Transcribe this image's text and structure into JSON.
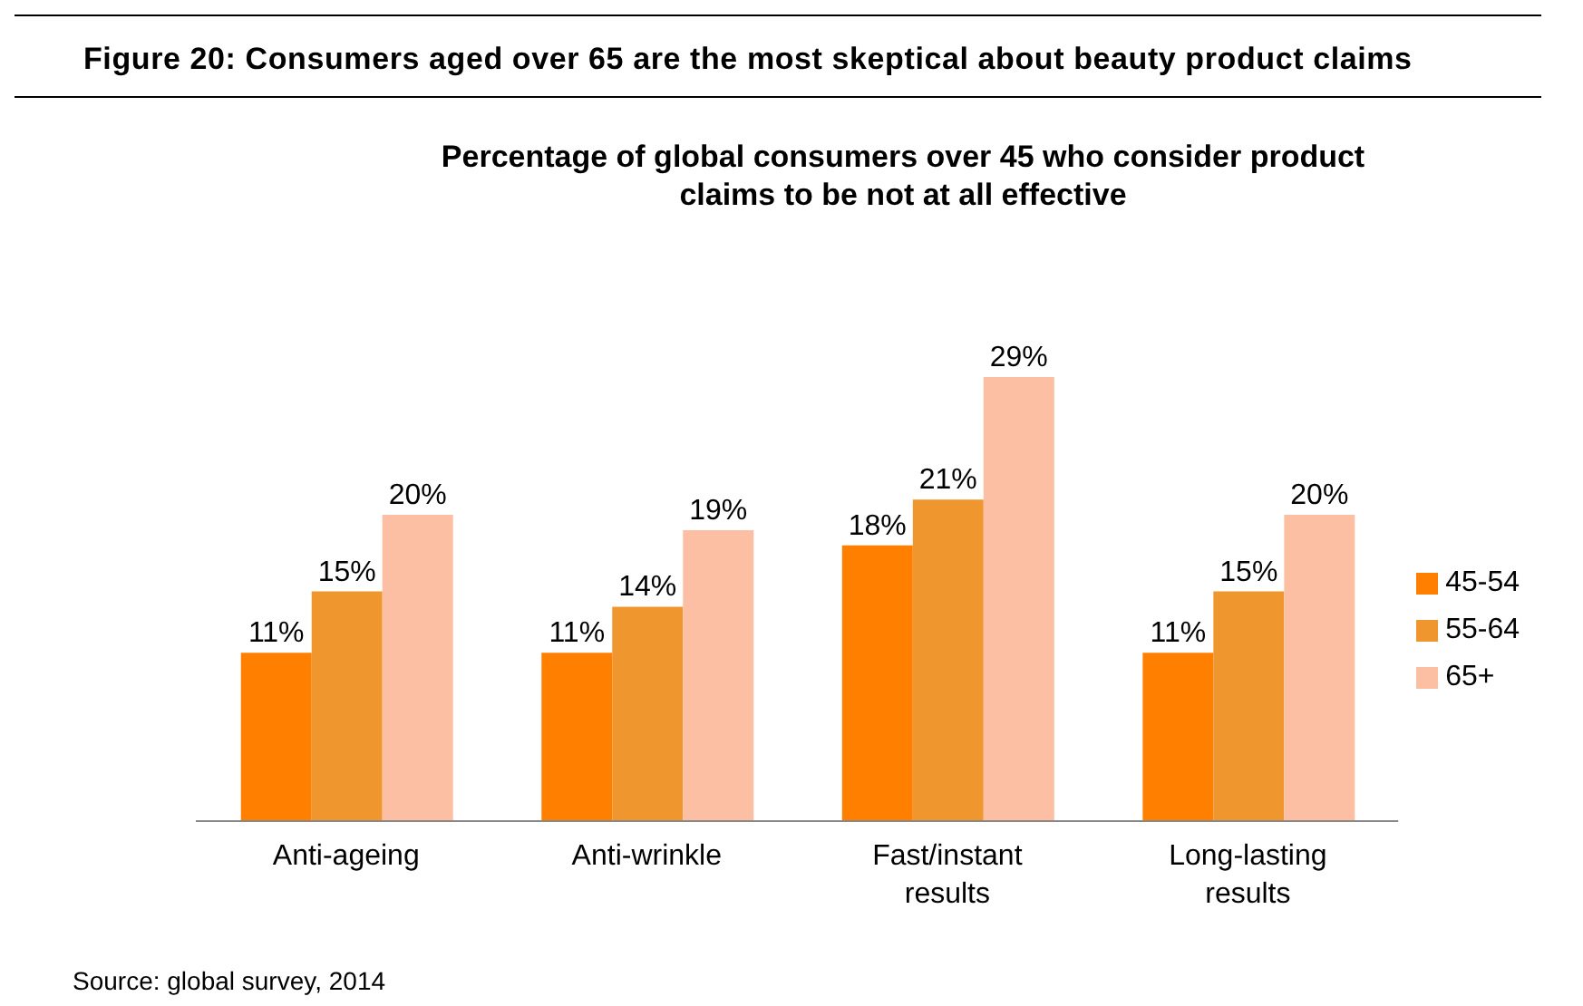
{
  "chart_data": {
    "type": "bar",
    "title": "Figure 20:  Consumers aged over 65 are the most skeptical about beauty product claims",
    "subtitle": "Percentage of global consumers over 45 who consider product claims to be not at all effective",
    "categories": [
      "Anti-ageing",
      "Anti-wrinkle",
      "Fast/instant results",
      "Long-lasting results"
    ],
    "series": [
      {
        "name": "45-54",
        "color": "#ff7f00",
        "values": [
          11,
          11,
          18,
          11
        ],
        "value_labels": [
          "11%",
          "11%",
          "18%",
          "11%"
        ]
      },
      {
        "name": "55-64",
        "color": "#f0962e",
        "values": [
          15,
          14,
          21,
          15
        ],
        "value_labels": [
          "15%",
          "14%",
          "21%",
          "15%"
        ]
      },
      {
        "name": "65+",
        "color": "#fcbfa4",
        "values": [
          20,
          19,
          29,
          20
        ],
        "value_labels": [
          "20%",
          "19%",
          "29%",
          "20%"
        ]
      }
    ],
    "legend": "right",
    "annotations": [
      "Source: global survey, 2014"
    ]
  }
}
